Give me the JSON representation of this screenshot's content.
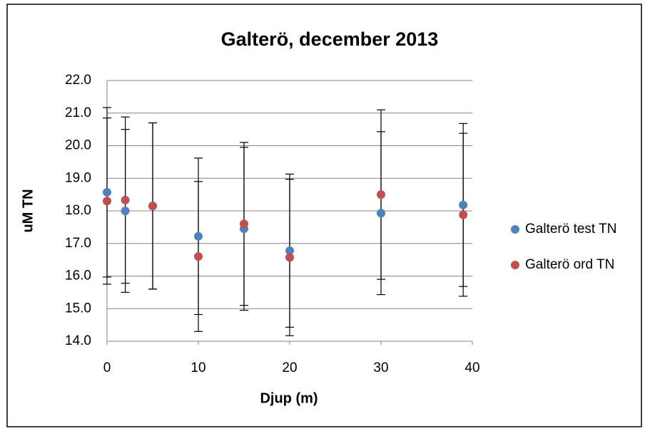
{
  "chart_data": {
    "type": "scatter",
    "title": "Galterö, december 2013",
    "x_label": "Djup (m)",
    "y_label": "uM TN",
    "xlim": [
      0,
      40
    ],
    "xticks": [
      0,
      10,
      20,
      30,
      40
    ],
    "ylim": [
      14,
      22
    ],
    "yticks": [
      {
        "value": 14,
        "label": "14.0"
      },
      {
        "value": 15,
        "label": "15.0"
      },
      {
        "value": 16,
        "label": "16.0"
      },
      {
        "value": 17,
        "label": "17.0"
      },
      {
        "value": 18,
        "label": "18.0"
      },
      {
        "value": 19,
        "label": "19.0"
      },
      {
        "value": 20,
        "label": "20.0"
      },
      {
        "value": 21,
        "label": "21.0"
      },
      {
        "value": 22,
        "label": "22.0"
      }
    ],
    "grid": true,
    "legend": "right",
    "series": [
      {
        "name": "Galterö test TN",
        "color": "#4f81bd",
        "x": [
          0,
          2,
          5,
          10,
          15,
          20,
          30,
          39
        ],
        "values": [
          18.57,
          18.0,
          18.15,
          17.22,
          17.45,
          16.78,
          17.93,
          18.18
        ],
        "errors": [
          2.6,
          2.5,
          2.55,
          2.4,
          2.5,
          2.35,
          2.5,
          2.5
        ]
      },
      {
        "name": "Galterö ord TN",
        "color": "#c0504d",
        "x": [
          0,
          2,
          5,
          10,
          15,
          20,
          30,
          39
        ],
        "values": [
          18.3,
          18.33,
          18.15,
          16.6,
          17.6,
          16.57,
          18.5,
          17.88
        ],
        "errors": [
          2.55,
          2.55,
          2.55,
          2.3,
          2.5,
          2.4,
          2.6,
          2.5
        ]
      }
    ]
  }
}
